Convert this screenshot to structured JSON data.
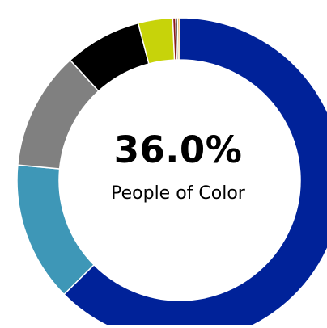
{
  "chart_data": {
    "type": "pie",
    "center_value": "36.0%",
    "center_label": "People of Color",
    "categories": [
      "",
      "",
      "",
      "",
      "",
      "",
      "",
      ""
    ],
    "values": [
      63.9,
      14.2,
      12.0,
      7.8,
      3.5,
      0.3,
      0.2,
      0.2
    ],
    "colors": [
      "#002299",
      "#3e97b7",
      "#808080",
      "#000000",
      "#c7d30a",
      "#8b1a1a",
      "#3a3a3a",
      "#e0a030"
    ],
    "start_angle_deg": 0,
    "direction": "clockwise",
    "donut": true,
    "legend": "none"
  }
}
